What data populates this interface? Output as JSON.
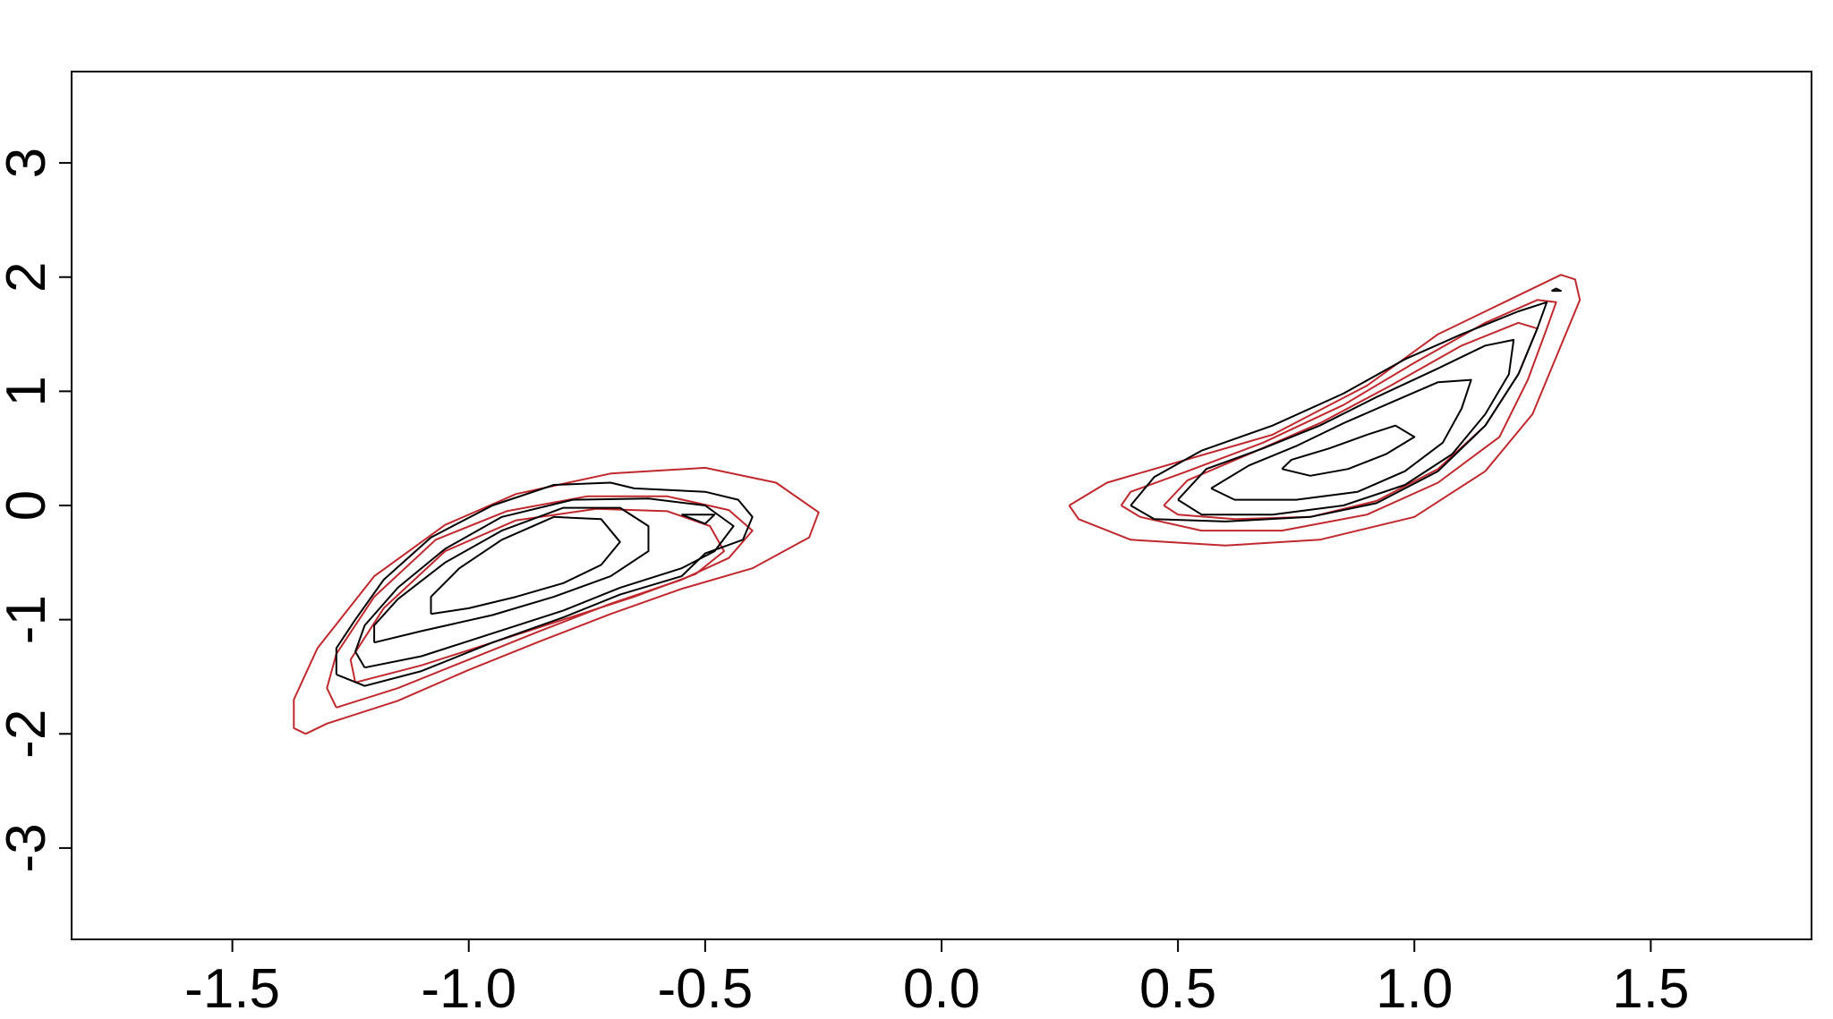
{
  "chart_data": {
    "type": "contour",
    "title": "",
    "xlabel": "",
    "ylabel": "",
    "xlim": [
      -1.84,
      1.84
    ],
    "ylim": [
      -3.8,
      3.8
    ],
    "x_ticks": [
      -1.5,
      -1.0,
      -0.5,
      0.0,
      0.5,
      1.0,
      1.5
    ],
    "x_tick_labels": [
      "-1.5",
      "-1.0",
      "-0.5",
      "0.0",
      "0.5",
      "1.0",
      "1.5"
    ],
    "y_ticks": [
      -3,
      -2,
      -1,
      0,
      1,
      2,
      3
    ],
    "y_tick_labels": [
      "-3",
      "-2",
      "-1",
      "0",
      "1",
      "2",
      "3"
    ],
    "grid": false,
    "legend": "none",
    "colors": {
      "theoretical": "#c0282d",
      "empirical": "#000000"
    },
    "series": [
      {
        "style": "theoretical",
        "contours": [
          [
            [
              -1.345,
              -2.0
            ],
            [
              -1.3,
              -1.91
            ],
            [
              -1.15,
              -1.71
            ],
            [
              -1.0,
              -1.44
            ],
            [
              -0.85,
              -1.19
            ],
            [
              -0.7,
              -0.95
            ],
            [
              -0.55,
              -0.73
            ],
            [
              -0.4,
              -0.55
            ],
            [
              -0.28,
              -0.28
            ],
            [
              -0.26,
              -0.06
            ],
            [
              -0.35,
              0.2
            ],
            [
              -0.5,
              0.33
            ],
            [
              -0.7,
              0.28
            ],
            [
              -0.9,
              0.1
            ],
            [
              -1.05,
              -0.17
            ],
            [
              -1.2,
              -0.62
            ],
            [
              -1.32,
              -1.25
            ],
            [
              -1.37,
              -1.7
            ],
            [
              -1.37,
              -1.95
            ],
            [
              -1.345,
              -2.0
            ]
          ],
          [
            [
              -1.28,
              -1.77
            ],
            [
              -1.15,
              -1.6
            ],
            [
              -1.0,
              -1.35
            ],
            [
              -0.85,
              -1.1
            ],
            [
              -0.7,
              -0.86
            ],
            [
              -0.55,
              -0.65
            ],
            [
              -0.45,
              -0.46
            ],
            [
              -0.4,
              -0.22
            ],
            [
              -0.45,
              -0.04
            ],
            [
              -0.58,
              0.08
            ],
            [
              -0.75,
              0.08
            ],
            [
              -0.92,
              -0.05
            ],
            [
              -1.07,
              -0.3
            ],
            [
              -1.2,
              -0.8
            ],
            [
              -1.28,
              -1.3
            ],
            [
              -1.3,
              -1.6
            ],
            [
              -1.28,
              -1.77
            ]
          ],
          [
            [
              -1.24,
              -1.55
            ],
            [
              -1.1,
              -1.4
            ],
            [
              -0.95,
              -1.2
            ],
            [
              -0.8,
              -1.0
            ],
            [
              -0.65,
              -0.8
            ],
            [
              -0.52,
              -0.6
            ],
            [
              -0.46,
              -0.4
            ],
            [
              -0.49,
              -0.18
            ],
            [
              -0.58,
              -0.05
            ],
            [
              -0.73,
              -0.03
            ],
            [
              -0.9,
              -0.13
            ],
            [
              -1.05,
              -0.4
            ],
            [
              -1.18,
              -0.9
            ],
            [
              -1.25,
              -1.35
            ],
            [
              -1.24,
              -1.55
            ]
          ],
          [
            [
              0.27,
              0.0
            ],
            [
              0.29,
              -0.12
            ],
            [
              0.4,
              -0.3
            ],
            [
              0.6,
              -0.35
            ],
            [
              0.8,
              -0.3
            ],
            [
              1.0,
              -0.1
            ],
            [
              1.15,
              0.3
            ],
            [
              1.25,
              0.8
            ],
            [
              1.3,
              1.3
            ],
            [
              1.35,
              1.8
            ],
            [
              1.34,
              1.98
            ],
            [
              1.31,
              2.02
            ],
            [
              1.2,
              1.8
            ],
            [
              1.05,
              1.5
            ],
            [
              0.9,
              1.05
            ],
            [
              0.7,
              0.62
            ],
            [
              0.5,
              0.38
            ],
            [
              0.35,
              0.2
            ],
            [
              0.27,
              0.0
            ]
          ],
          [
            [
              0.38,
              0.0
            ],
            [
              0.42,
              -0.1
            ],
            [
              0.55,
              -0.22
            ],
            [
              0.72,
              -0.22
            ],
            [
              0.9,
              -0.08
            ],
            [
              1.05,
              0.2
            ],
            [
              1.18,
              0.6
            ],
            [
              1.24,
              1.1
            ],
            [
              1.28,
              1.55
            ],
            [
              1.3,
              1.78
            ],
            [
              1.26,
              1.8
            ],
            [
              1.15,
              1.6
            ],
            [
              1.0,
              1.25
            ],
            [
              0.85,
              0.88
            ],
            [
              0.68,
              0.55
            ],
            [
              0.52,
              0.3
            ],
            [
              0.4,
              0.12
            ],
            [
              0.38,
              0.0
            ]
          ],
          [
            [
              0.47,
              0.0
            ],
            [
              0.5,
              -0.08
            ],
            [
              0.62,
              -0.12
            ],
            [
              0.78,
              -0.1
            ],
            [
              0.92,
              0.04
            ],
            [
              1.05,
              0.32
            ],
            [
              1.15,
              0.7
            ],
            [
              1.22,
              1.15
            ],
            [
              1.26,
              1.55
            ],
            [
              1.22,
              1.6
            ],
            [
              1.1,
              1.4
            ],
            [
              0.95,
              1.05
            ],
            [
              0.8,
              0.72
            ],
            [
              0.65,
              0.45
            ],
            [
              0.52,
              0.22
            ],
            [
              0.47,
              0.0
            ]
          ]
        ]
      },
      {
        "style": "empirical",
        "contours": [
          [
            [
              -1.28,
              -1.48
            ],
            [
              -1.22,
              -1.58
            ],
            [
              -1.1,
              -1.45
            ],
            [
              -0.95,
              -1.2
            ],
            [
              -0.8,
              -0.98
            ],
            [
              -0.68,
              -0.78
            ],
            [
              -0.55,
              -0.62
            ],
            [
              -0.5,
              -0.42
            ],
            [
              -0.42,
              -0.3
            ],
            [
              -0.4,
              -0.1
            ],
            [
              -0.43,
              0.05
            ],
            [
              -0.5,
              0.12
            ],
            [
              -0.65,
              0.15
            ],
            [
              -0.7,
              0.2
            ],
            [
              -0.82,
              0.18
            ],
            [
              -0.95,
              0.0
            ],
            [
              -1.08,
              -0.28
            ],
            [
              -1.18,
              -0.65
            ],
            [
              -1.24,
              -1.0
            ],
            [
              -1.28,
              -1.25
            ],
            [
              -1.28,
              -1.48
            ]
          ],
          [
            [
              -1.22,
              -1.42
            ],
            [
              -1.1,
              -1.32
            ],
            [
              -0.95,
              -1.12
            ],
            [
              -0.8,
              -0.92
            ],
            [
              -0.68,
              -0.72
            ],
            [
              -0.55,
              -0.55
            ],
            [
              -0.48,
              -0.4
            ],
            [
              -0.44,
              -0.18
            ],
            [
              -0.5,
              0.0
            ],
            [
              -0.62,
              0.06
            ],
            [
              -0.78,
              0.05
            ],
            [
              -0.93,
              -0.1
            ],
            [
              -1.05,
              -0.38
            ],
            [
              -1.15,
              -0.72
            ],
            [
              -1.22,
              -1.05
            ],
            [
              -1.24,
              -1.28
            ],
            [
              -1.22,
              -1.42
            ]
          ],
          [
            [
              -1.2,
              -1.2
            ],
            [
              -1.1,
              -1.1
            ],
            [
              -0.95,
              -0.96
            ],
            [
              -0.82,
              -0.8
            ],
            [
              -0.7,
              -0.62
            ],
            [
              -0.62,
              -0.4
            ],
            [
              -0.62,
              -0.18
            ],
            [
              -0.68,
              -0.02
            ],
            [
              -0.8,
              -0.02
            ],
            [
              -0.93,
              -0.22
            ],
            [
              -1.05,
              -0.5
            ],
            [
              -1.15,
              -0.82
            ],
            [
              -1.2,
              -1.05
            ],
            [
              -1.2,
              -1.2
            ]
          ],
          [
            [
              -1.08,
              -0.95
            ],
            [
              -1.0,
              -0.9
            ],
            [
              -0.9,
              -0.8
            ],
            [
              -0.8,
              -0.68
            ],
            [
              -0.72,
              -0.52
            ],
            [
              -0.68,
              -0.32
            ],
            [
              -0.72,
              -0.12
            ],
            [
              -0.82,
              -0.1
            ],
            [
              -0.93,
              -0.3
            ],
            [
              -1.02,
              -0.55
            ],
            [
              -1.08,
              -0.8
            ],
            [
              -1.08,
              -0.95
            ]
          ],
          [
            [
              -0.55,
              -0.08
            ],
            [
              -0.5,
              -0.16
            ],
            [
              -0.48,
              -0.08
            ],
            [
              -0.55,
              -0.08
            ]
          ],
          [
            [
              0.4,
              0.0
            ],
            [
              0.45,
              -0.12
            ],
            [
              0.6,
              -0.14
            ],
            [
              0.78,
              -0.1
            ],
            [
              0.92,
              0.02
            ],
            [
              1.05,
              0.3
            ],
            [
              1.15,
              0.7
            ],
            [
              1.22,
              1.15
            ],
            [
              1.26,
              1.55
            ],
            [
              1.28,
              1.78
            ],
            [
              1.22,
              1.7
            ],
            [
              1.1,
              1.5
            ],
            [
              0.98,
              1.28
            ],
            [
              0.85,
              0.98
            ],
            [
              0.7,
              0.7
            ],
            [
              0.55,
              0.48
            ],
            [
              0.45,
              0.25
            ],
            [
              0.4,
              0.0
            ]
          ],
          [
            [
              0.5,
              0.05
            ],
            [
              0.55,
              -0.08
            ],
            [
              0.7,
              -0.08
            ],
            [
              0.85,
              0.0
            ],
            [
              0.98,
              0.18
            ],
            [
              1.08,
              0.45
            ],
            [
              1.15,
              0.8
            ],
            [
              1.2,
              1.15
            ],
            [
              1.21,
              1.45
            ],
            [
              1.15,
              1.4
            ],
            [
              1.05,
              1.2
            ],
            [
              0.92,
              0.95
            ],
            [
              0.8,
              0.7
            ],
            [
              0.68,
              0.5
            ],
            [
              0.56,
              0.32
            ],
            [
              0.5,
              0.05
            ]
          ],
          [
            [
              0.57,
              0.15
            ],
            [
              0.62,
              0.05
            ],
            [
              0.75,
              0.05
            ],
            [
              0.88,
              0.12
            ],
            [
              0.98,
              0.3
            ],
            [
              1.06,
              0.55
            ],
            [
              1.1,
              0.85
            ],
            [
              1.12,
              1.1
            ],
            [
              1.05,
              1.08
            ],
            [
              0.95,
              0.9
            ],
            [
              0.85,
              0.72
            ],
            [
              0.75,
              0.52
            ],
            [
              0.65,
              0.35
            ],
            [
              0.57,
              0.15
            ]
          ],
          [
            [
              0.72,
              0.32
            ],
            [
              0.78,
              0.26
            ],
            [
              0.86,
              0.32
            ],
            [
              0.94,
              0.45
            ],
            [
              1.0,
              0.6
            ],
            [
              0.96,
              0.7
            ],
            [
              0.9,
              0.62
            ],
            [
              0.82,
              0.5
            ],
            [
              0.74,
              0.4
            ],
            [
              0.72,
              0.32
            ]
          ],
          [
            [
              1.29,
              1.88
            ],
            [
              1.3,
              1.9
            ],
            [
              1.31,
              1.88
            ],
            [
              1.29,
              1.88
            ]
          ]
        ]
      }
    ]
  }
}
